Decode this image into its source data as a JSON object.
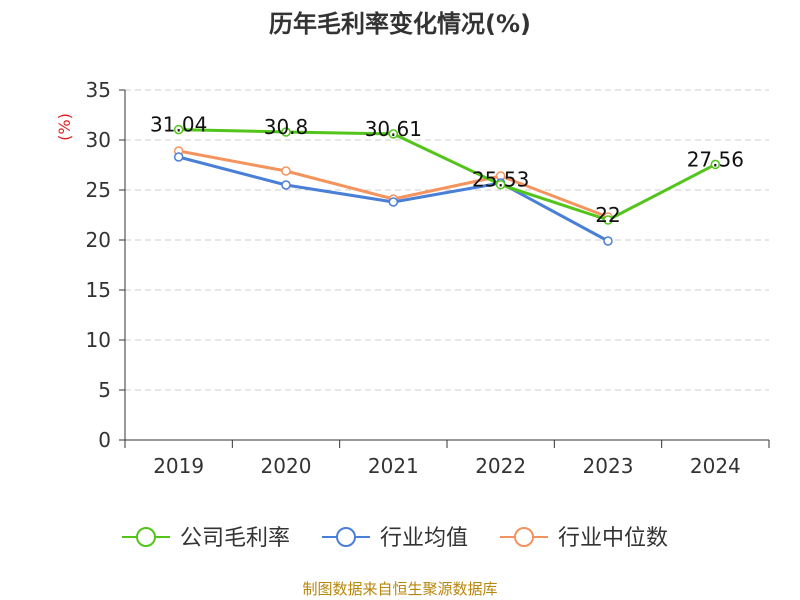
{
  "chart_data": {
    "type": "line",
    "title": "历年毛利率变化情况(%)",
    "ylabel": "(%)",
    "xlabel": "",
    "categories": [
      "2019",
      "2020",
      "2021",
      "2022",
      "2023",
      "2024"
    ],
    "ylim": [
      0,
      35
    ],
    "yticks": [
      0,
      5,
      10,
      15,
      20,
      25,
      30,
      35
    ],
    "grid": true,
    "legend_position": "bottom",
    "series": [
      {
        "name": "公司毛利率",
        "color": "#52c41a",
        "values": [
          31.04,
          30.8,
          30.61,
          25.53,
          22,
          27.56
        ],
        "data_labels": [
          "31.04",
          "30.8",
          "30.61",
          "25.53",
          "22",
          "27.56"
        ]
      },
      {
        "name": "行业均值",
        "color": "#4a7fd8",
        "values": [
          28.3,
          25.5,
          23.8,
          25.7,
          19.9,
          null
        ]
      },
      {
        "name": "行业中位数",
        "color": "#f5935e",
        "values": [
          28.9,
          26.9,
          24.1,
          26.4,
          22.3,
          null
        ]
      }
    ]
  },
  "footer": {
    "source": "制图数据来自恒生聚源数据库"
  },
  "colors": {
    "title": "#333333",
    "axis": "#333333",
    "grid": "#cccccc",
    "ylabel": "#e02020",
    "footer": "#b8860b"
  }
}
